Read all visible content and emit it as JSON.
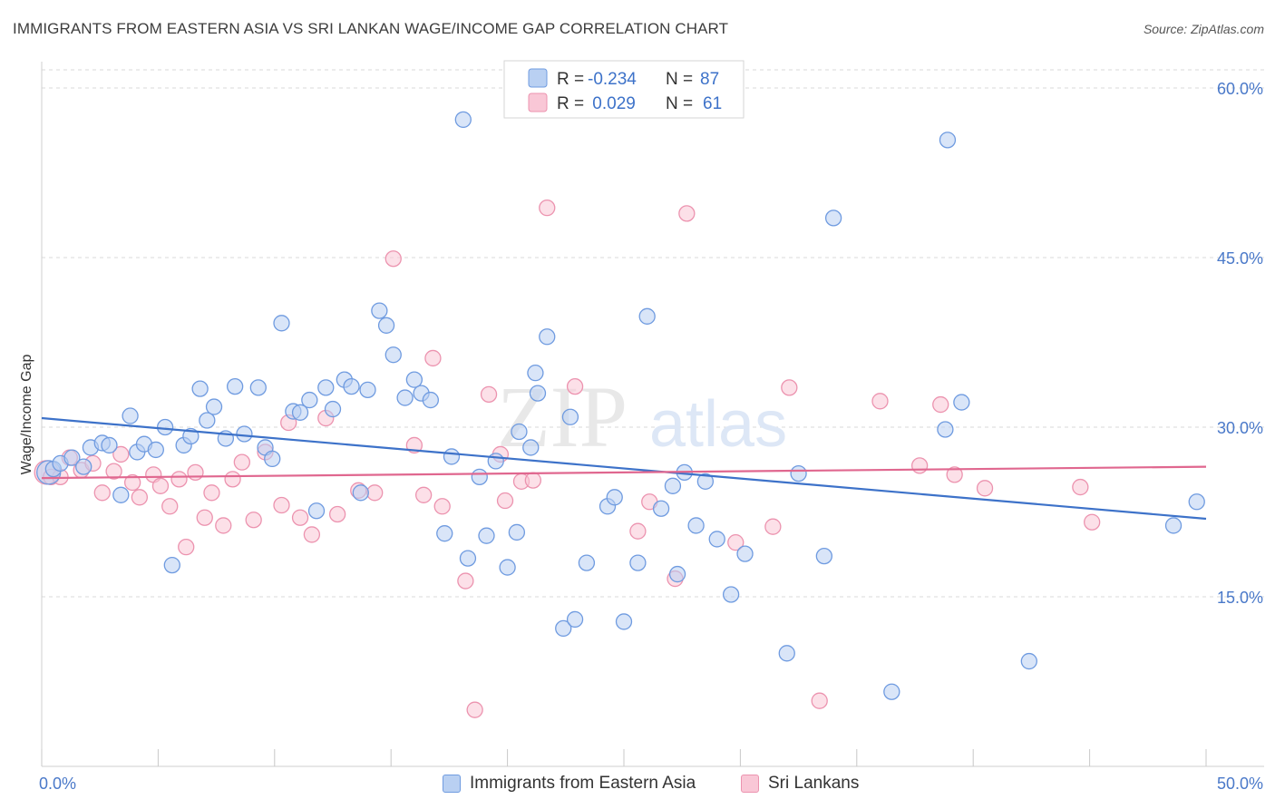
{
  "title": "IMMIGRANTS FROM EASTERN ASIA VS SRI LANKAN WAGE/INCOME GAP CORRELATION CHART",
  "source": "Source: ZipAtlas.com",
  "watermark": {
    "left": "ZIP",
    "right": "atlas"
  },
  "legend_box": {
    "rows": [
      {
        "r_label": "R = ",
        "r_value": "-0.234",
        "n_label": "N = ",
        "n_value": "87"
      },
      {
        "r_label": "R = ",
        "r_value": " 0.029",
        "n_label": "N = ",
        "n_value": "61"
      }
    ]
  },
  "bottom_legend": {
    "series1": "Immigrants from Eastern Asia",
    "series2": "Sri Lankans"
  },
  "colors": {
    "blue_fill": "#b9d0f2",
    "blue_stroke": "#6f9be0",
    "blue_line": "#3d72c9",
    "pink_fill": "#f9c7d6",
    "pink_stroke": "#ec93af",
    "pink_line": "#e0678f",
    "grid": "#d9d9d9",
    "axis_text": "#4a79c9"
  },
  "chart_data": {
    "type": "scatter",
    "title": "IMMIGRANTS FROM EASTERN ASIA VS SRI LANKAN WAGE/INCOME GAP CORRELATION CHART",
    "xlabel": "",
    "ylabel": "Wage/Income Gap",
    "xlim": [
      0,
      50
    ],
    "ylim": [
      0,
      62
    ],
    "x_tick_labels": [
      "0.0%",
      "50.0%"
    ],
    "y_ticks": [
      15,
      30,
      45,
      60
    ],
    "y_tick_labels": [
      "15.0%",
      "30.0%",
      "45.0%",
      "60.0%"
    ],
    "grid": true,
    "legend_position": "top-center",
    "series": [
      {
        "name": "Immigrants from Eastern Asia",
        "color": "#6f9be0",
        "r": -0.234,
        "n": 87,
        "trend": {
          "x": [
            0,
            50
          ],
          "y": [
            30.8,
            21.9
          ]
        },
        "points": [
          [
            0.3,
            26.0
          ],
          [
            0.5,
            26.3
          ],
          [
            0.8,
            26.8
          ],
          [
            1.3,
            27.3
          ],
          [
            1.8,
            26.5
          ],
          [
            2.1,
            28.2
          ],
          [
            2.6,
            28.6
          ],
          [
            2.9,
            28.4
          ],
          [
            3.4,
            24.0
          ],
          [
            3.8,
            31.0
          ],
          [
            4.1,
            27.8
          ],
          [
            4.4,
            28.5
          ],
          [
            4.9,
            28.0
          ],
          [
            5.3,
            30.0
          ],
          [
            5.6,
            17.8
          ],
          [
            6.1,
            28.4
          ],
          [
            6.4,
            29.2
          ],
          [
            6.8,
            33.4
          ],
          [
            7.1,
            30.6
          ],
          [
            7.4,
            31.8
          ],
          [
            7.9,
            29.0
          ],
          [
            8.3,
            33.6
          ],
          [
            8.7,
            29.4
          ],
          [
            9.3,
            33.5
          ],
          [
            9.6,
            28.2
          ],
          [
            9.9,
            27.2
          ],
          [
            10.3,
            39.2
          ],
          [
            10.8,
            31.4
          ],
          [
            11.1,
            31.3
          ],
          [
            11.5,
            32.4
          ],
          [
            11.8,
            22.6
          ],
          [
            12.2,
            33.5
          ],
          [
            12.5,
            31.6
          ],
          [
            13.0,
            34.2
          ],
          [
            13.3,
            33.6
          ],
          [
            13.7,
            24.2
          ],
          [
            14.0,
            33.3
          ],
          [
            14.5,
            40.3
          ],
          [
            14.8,
            39.0
          ],
          [
            15.1,
            36.4
          ],
          [
            15.6,
            32.6
          ],
          [
            16.0,
            34.2
          ],
          [
            16.3,
            33.0
          ],
          [
            16.7,
            32.4
          ],
          [
            17.3,
            20.6
          ],
          [
            17.6,
            27.4
          ],
          [
            18.1,
            57.2
          ],
          [
            18.3,
            18.4
          ],
          [
            18.8,
            25.6
          ],
          [
            19.1,
            20.4
          ],
          [
            19.5,
            27.0
          ],
          [
            20.0,
            17.6
          ],
          [
            20.4,
            20.7
          ],
          [
            20.5,
            29.6
          ],
          [
            21.0,
            28.2
          ],
          [
            21.2,
            34.8
          ],
          [
            21.3,
            33.0
          ],
          [
            21.7,
            38.0
          ],
          [
            22.4,
            12.2
          ],
          [
            22.7,
            30.9
          ],
          [
            22.9,
            13.0
          ],
          [
            23.4,
            18.0
          ],
          [
            24.3,
            23.0
          ],
          [
            24.6,
            23.8
          ],
          [
            25.0,
            12.8
          ],
          [
            25.6,
            18.0
          ],
          [
            26.0,
            39.8
          ],
          [
            26.6,
            22.8
          ],
          [
            27.1,
            24.8
          ],
          [
            27.3,
            17.0
          ],
          [
            27.6,
            26.0
          ],
          [
            28.1,
            21.3
          ],
          [
            28.5,
            25.2
          ],
          [
            29.0,
            20.1
          ],
          [
            29.6,
            15.2
          ],
          [
            30.2,
            18.8
          ],
          [
            32.0,
            10.0
          ],
          [
            32.5,
            25.9
          ],
          [
            33.6,
            18.6
          ],
          [
            34.0,
            48.5
          ],
          [
            36.5,
            6.6
          ],
          [
            38.8,
            29.8
          ],
          [
            38.9,
            55.4
          ],
          [
            39.5,
            32.2
          ],
          [
            42.4,
            9.3
          ],
          [
            48.6,
            21.3
          ],
          [
            49.6,
            23.4
          ]
        ]
      },
      {
        "name": "Sri Lankans",
        "color": "#ec93af",
        "r": 0.029,
        "n": 61,
        "trend": {
          "x": [
            0,
            50
          ],
          "y": [
            25.5,
            26.5
          ]
        },
        "points": [
          [
            0.2,
            26.0
          ],
          [
            0.4,
            25.6
          ],
          [
            0.8,
            25.6
          ],
          [
            1.2,
            27.3
          ],
          [
            1.7,
            26.2
          ],
          [
            2.2,
            26.8
          ],
          [
            2.6,
            24.2
          ],
          [
            3.1,
            26.1
          ],
          [
            3.4,
            27.6
          ],
          [
            3.9,
            25.1
          ],
          [
            4.2,
            23.8
          ],
          [
            4.8,
            25.8
          ],
          [
            5.1,
            24.8
          ],
          [
            5.5,
            23.0
          ],
          [
            5.9,
            25.4
          ],
          [
            6.2,
            19.4
          ],
          [
            6.6,
            26.0
          ],
          [
            7.0,
            22.0
          ],
          [
            7.3,
            24.2
          ],
          [
            7.8,
            21.3
          ],
          [
            8.2,
            25.4
          ],
          [
            8.6,
            26.9
          ],
          [
            9.1,
            21.8
          ],
          [
            9.6,
            27.8
          ],
          [
            10.3,
            23.1
          ],
          [
            10.6,
            30.4
          ],
          [
            11.1,
            22.0
          ],
          [
            11.6,
            20.5
          ],
          [
            12.2,
            30.8
          ],
          [
            12.7,
            22.3
          ],
          [
            13.6,
            24.4
          ],
          [
            14.3,
            24.2
          ],
          [
            15.1,
            44.9
          ],
          [
            16.0,
            28.4
          ],
          [
            16.4,
            24.0
          ],
          [
            16.8,
            36.1
          ],
          [
            17.2,
            23.0
          ],
          [
            18.2,
            16.4
          ],
          [
            18.6,
            5.0
          ],
          [
            19.2,
            32.9
          ],
          [
            19.7,
            27.6
          ],
          [
            19.9,
            23.5
          ],
          [
            20.6,
            25.2
          ],
          [
            21.1,
            25.3
          ],
          [
            21.7,
            49.4
          ],
          [
            22.9,
            33.6
          ],
          [
            25.6,
            20.8
          ],
          [
            26.1,
            23.4
          ],
          [
            27.2,
            16.6
          ],
          [
            27.7,
            48.9
          ],
          [
            29.8,
            19.8
          ],
          [
            31.4,
            21.2
          ],
          [
            32.1,
            33.5
          ],
          [
            33.4,
            5.8
          ],
          [
            36.0,
            32.3
          ],
          [
            37.7,
            26.6
          ],
          [
            38.6,
            32.0
          ],
          [
            39.2,
            25.8
          ],
          [
            40.5,
            24.6
          ],
          [
            44.6,
            24.7
          ],
          [
            45.1,
            21.6
          ]
        ]
      }
    ]
  }
}
